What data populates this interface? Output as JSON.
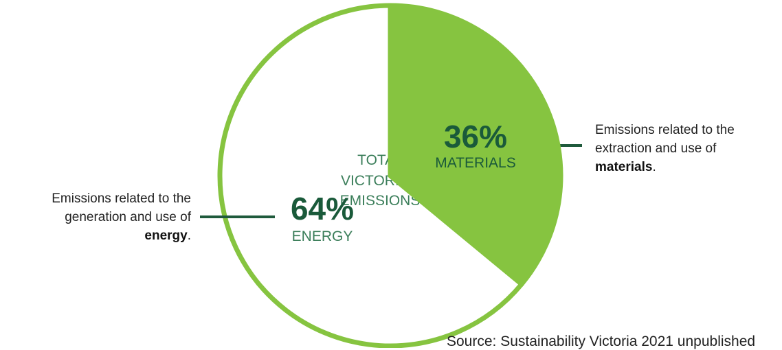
{
  "chart_data": {
    "type": "pie",
    "slices": [
      {
        "label": "MATERIALS",
        "value": 36,
        "value_text": "36%",
        "color": "#86c440"
      },
      {
        "label": "ENERGY",
        "value": 64,
        "value_text": "64%",
        "color": "#ffffff"
      }
    ],
    "center_lines": [
      "TOTAL",
      "VICTORIAN",
      "EMISSIONS"
    ],
    "annotations": {
      "energy": {
        "line1": "Emissions related to the",
        "line2": "generation and use of",
        "bold": "energy",
        "suffix": "."
      },
      "materials": {
        "line1": "Emissions related to the",
        "line2": "extraction and use of",
        "bold": "materials",
        "suffix": "."
      }
    },
    "source": "Source: Sustainability Victoria 2021 unpublished"
  },
  "colors": {
    "green": "#86c440",
    "text_dark_green": "#1a5a3a",
    "text_mid_green": "#3b7e5a",
    "leader": "#1f5a3c",
    "white": "#ffffff"
  }
}
